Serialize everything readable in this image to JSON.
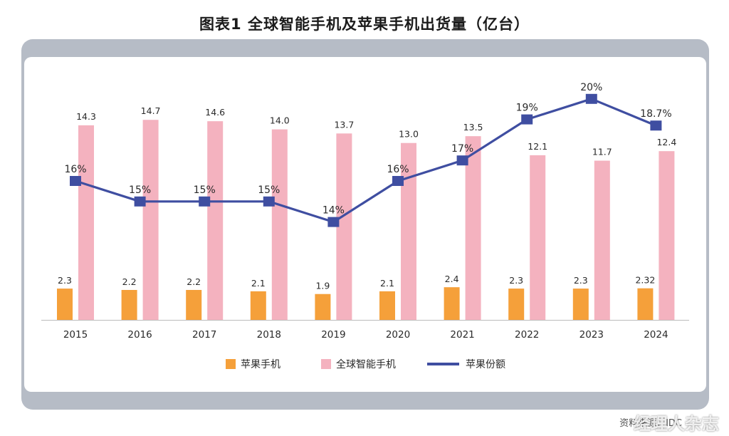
{
  "chart_data": {
    "type": "bar",
    "title": "图表1  全球智能手机及苹果手机出货量（亿台）",
    "categories": [
      "2015",
      "2016",
      "2017",
      "2018",
      "2019",
      "2020",
      "2021",
      "2022",
      "2023",
      "2024"
    ],
    "series": [
      {
        "name": "苹果手机",
        "type": "bar",
        "color": "#f5a03a",
        "values": [
          2.3,
          2.2,
          2.2,
          2.1,
          1.9,
          2.1,
          2.4,
          2.3,
          2.3,
          2.32
        ],
        "labels": [
          "2.3",
          "2.2",
          "2.2",
          "2.1",
          "1.9",
          "2.1",
          "2.4",
          "2.3",
          "2.3",
          "2.32"
        ]
      },
      {
        "name": "全球智能手机",
        "type": "bar",
        "color": "#f4b2bf",
        "values": [
          14.3,
          14.7,
          14.6,
          14.0,
          13.7,
          13.0,
          13.5,
          12.1,
          11.7,
          12.4
        ],
        "labels": [
          "14.3",
          "14.7",
          "14.6",
          "14.0",
          "13.7",
          "13.0",
          "13.5",
          "12.1",
          "11.7",
          "12.4"
        ]
      },
      {
        "name": "苹果份额",
        "type": "line",
        "color": "#3f4ea1",
        "values": [
          16,
          15,
          15,
          15,
          14,
          16,
          17,
          19,
          20,
          18.7
        ],
        "labels": [
          "16%",
          "15%",
          "15%",
          "15%",
          "14%",
          "16%",
          "17%",
          "19%",
          "20%",
          "18.7%"
        ]
      }
    ],
    "legend_position": "bottom",
    "grid": false
  },
  "source": "资料来源：IDC",
  "watermark": "经理人杂志"
}
